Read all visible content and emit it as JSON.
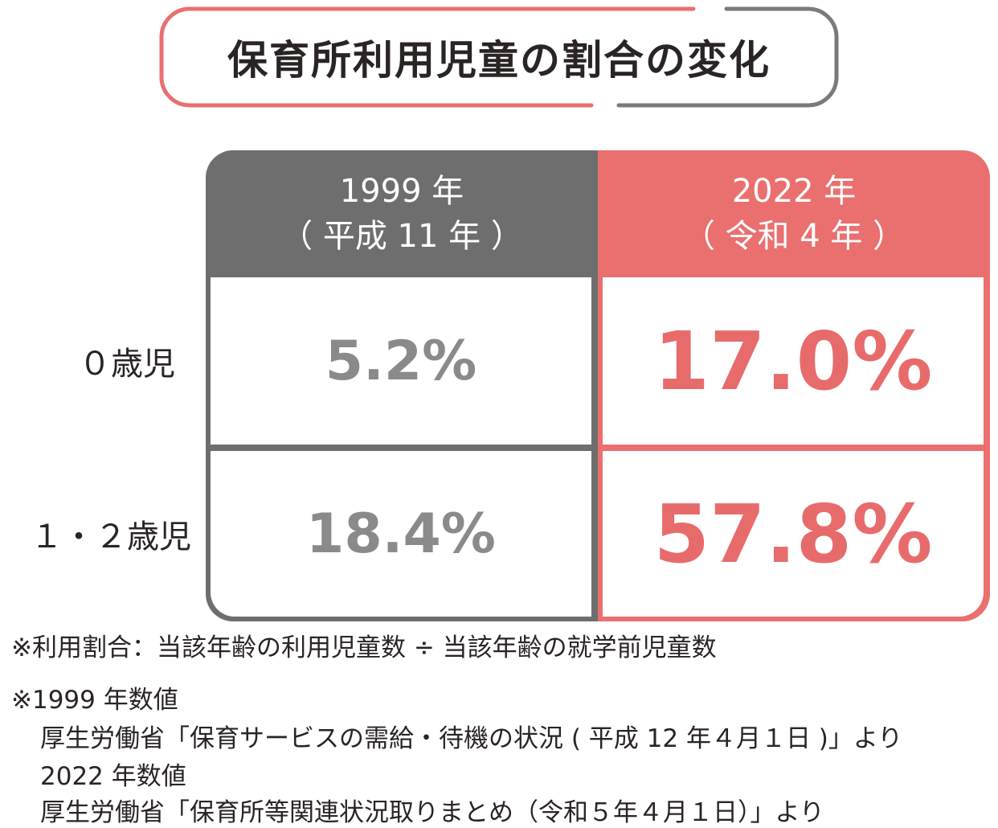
{
  "title": "保育所利用児童の割合の変化",
  "columns": [
    {
      "year": "1999 年",
      "era": "（ 平成 11 年 ）"
    },
    {
      "year": "2022 年",
      "era": "（ 令和 4 年 ）"
    }
  ],
  "rows": [
    {
      "label": "０歳児",
      "values": [
        "5.2%",
        "17.0%"
      ]
    },
    {
      "label": "１・２歳児",
      "values": [
        "18.4%",
        "57.8%"
      ]
    }
  ],
  "notes": [
    "※利用割合：当該年齢の利用児童数 ÷ 当該年齢の就学前児童数",
    "※1999 年数値",
    "厚生労働省「保育サービスの需給・待機の状況 ( 平成 12 年４月１日 )」より",
    "2022 年数値",
    "厚生労働省「保育所等関連状況取りまとめ（令和５年４月１日）」より"
  ],
  "colors": {
    "grey": "#6e6e6e",
    "red": "#ea6f6f",
    "text": "#2a2424"
  }
}
